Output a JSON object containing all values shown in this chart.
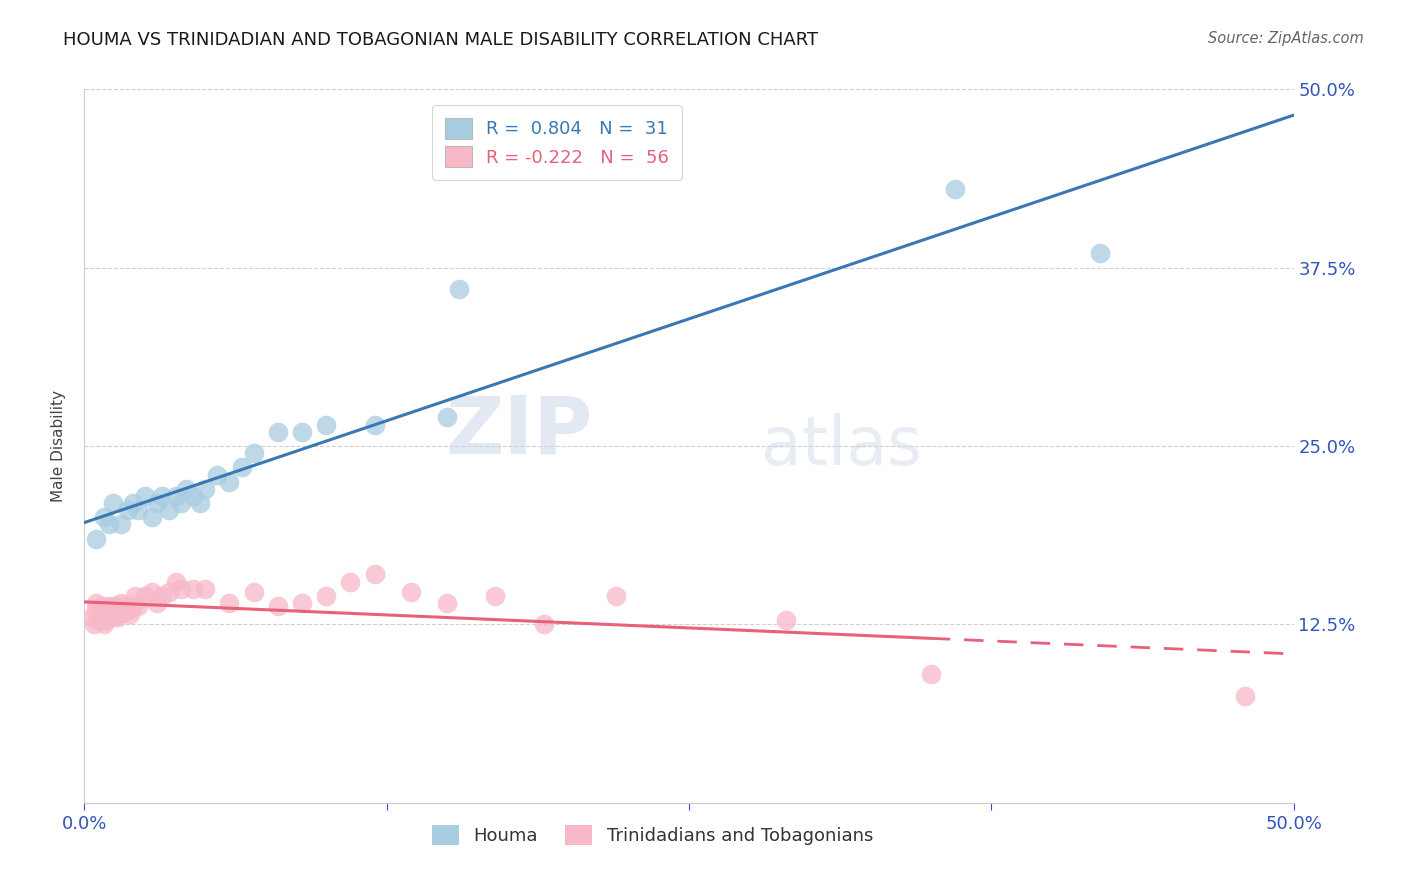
{
  "title": "HOUMA VS TRINIDADIAN AND TOBAGONIAN MALE DISABILITY CORRELATION CHART",
  "source_text": "Source: ZipAtlas.com",
  "ylabel": "Male Disability",
  "x_min": 0.0,
  "x_max": 0.5,
  "y_min": 0.0,
  "y_max": 0.5,
  "y_ticks_right": [
    0.125,
    0.25,
    0.375,
    0.5
  ],
  "y_tick_labels_right": [
    "12.5%",
    "25.0%",
    "37.5%",
    "50.0%"
  ],
  "houma_R": 0.804,
  "houma_N": 31,
  "trint_R": -0.222,
  "trint_N": 56,
  "houma_color": "#a8cce0",
  "trint_color": "#f7b8c8",
  "houma_line_color": "#3878b4",
  "trint_line_color": "#e8607a",
  "legend_label_houma": "Houma",
  "legend_label_trint": "Trinidadians and Tobagonians",
  "watermark_zip": "ZIP",
  "watermark_atlas": "atlas",
  "houma_x": [
    0.005,
    0.008,
    0.01,
    0.012,
    0.015,
    0.018,
    0.02,
    0.022,
    0.025,
    0.028,
    0.03,
    0.032,
    0.035,
    0.038,
    0.04,
    0.042,
    0.045,
    0.048,
    0.05,
    0.055,
    0.06,
    0.065,
    0.07,
    0.08,
    0.09,
    0.1,
    0.12,
    0.15,
    0.155,
    0.36,
    0.42
  ],
  "houma_y": [
    0.185,
    0.2,
    0.195,
    0.21,
    0.195,
    0.205,
    0.21,
    0.205,
    0.215,
    0.2,
    0.21,
    0.215,
    0.205,
    0.215,
    0.21,
    0.22,
    0.215,
    0.21,
    0.22,
    0.23,
    0.225,
    0.235,
    0.245,
    0.26,
    0.26,
    0.265,
    0.265,
    0.27,
    0.36,
    0.43,
    0.385
  ],
  "trint_x": [
    0.003,
    0.004,
    0.005,
    0.005,
    0.006,
    0.006,
    0.007,
    0.007,
    0.008,
    0.008,
    0.009,
    0.009,
    0.01,
    0.01,
    0.01,
    0.011,
    0.011,
    0.012,
    0.012,
    0.013,
    0.013,
    0.014,
    0.014,
    0.015,
    0.015,
    0.016,
    0.017,
    0.018,
    0.019,
    0.02,
    0.021,
    0.022,
    0.025,
    0.028,
    0.03,
    0.032,
    0.035,
    0.038,
    0.04,
    0.045,
    0.05,
    0.06,
    0.07,
    0.08,
    0.09,
    0.1,
    0.11,
    0.12,
    0.135,
    0.15,
    0.17,
    0.19,
    0.22,
    0.29,
    0.35,
    0.48
  ],
  "trint_y": [
    0.13,
    0.125,
    0.135,
    0.14,
    0.128,
    0.132,
    0.13,
    0.138,
    0.125,
    0.133,
    0.128,
    0.136,
    0.13,
    0.135,
    0.138,
    0.132,
    0.137,
    0.13,
    0.135,
    0.133,
    0.138,
    0.13,
    0.136,
    0.135,
    0.14,
    0.133,
    0.138,
    0.135,
    0.132,
    0.138,
    0.145,
    0.138,
    0.145,
    0.148,
    0.14,
    0.145,
    0.148,
    0.155,
    0.15,
    0.15,
    0.15,
    0.14,
    0.148,
    0.138,
    0.14,
    0.145,
    0.155,
    0.16,
    0.148,
    0.14,
    0.145,
    0.125,
    0.145,
    0.128,
    0.09,
    0.075
  ],
  "trint_line_solid_end": 0.35
}
